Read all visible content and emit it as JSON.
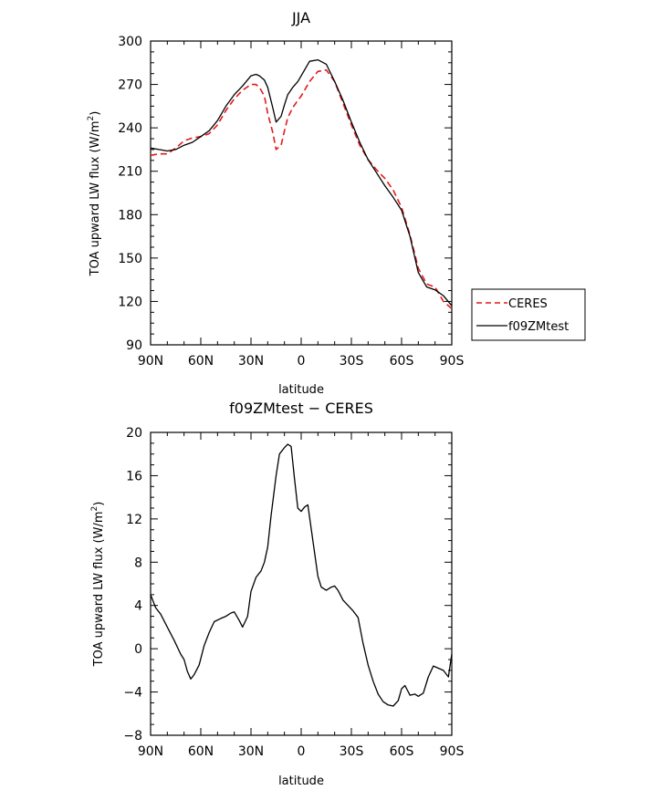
{
  "chart_data": [
    {
      "type": "line",
      "title": "JJA",
      "xlabel": "latitude",
      "ylabel_main": "TOA upward LW flux (W/m",
      "ylabel_sup": "2",
      "ylabel_close": ")",
      "xlim": [
        90,
        -90
      ],
      "ylim": [
        90,
        300
      ],
      "xticks": [
        90,
        60,
        30,
        0,
        -30,
        -60,
        -90
      ],
      "xtick_labels": [
        "90N",
        "60N",
        "30N",
        "0",
        "30S",
        "60S",
        "90S"
      ],
      "yticks": [
        90,
        120,
        150,
        180,
        210,
        240,
        270,
        300
      ],
      "ytick_labels": [
        "90",
        "120",
        "150",
        "180",
        "210",
        "240",
        "270",
        "300"
      ],
      "legend": {
        "placement": "right",
        "entries": [
          "CERES",
          "f09ZMtest"
        ]
      },
      "colors": {
        "CERES": "#e31a1c",
        "f09ZMtest": "#000000"
      },
      "series": [
        {
          "name": "CERES",
          "x": [
            90,
            85,
            80,
            75,
            70,
            65,
            60,
            55,
            50,
            45,
            40,
            35,
            30,
            27,
            25,
            22,
            20,
            17,
            15,
            12,
            10,
            8,
            5,
            2,
            0,
            -5,
            -10,
            -15,
            -20,
            -25,
            -30,
            -35,
            -40,
            -45,
            -50,
            -55,
            -60,
            -65,
            -70,
            -75,
            -80,
            -85,
            -90
          ],
          "y": [
            221,
            222,
            222,
            226,
            231,
            233,
            234,
            236,
            242,
            252,
            260,
            266,
            270,
            270,
            268,
            262,
            250,
            237,
            225,
            228,
            238,
            247,
            254,
            259,
            262,
            272,
            279,
            280,
            272,
            257,
            242,
            228,
            218,
            211,
            205,
            197,
            185,
            166,
            143,
            132,
            130,
            120,
            115
          ]
        },
        {
          "name": "f09ZMtest",
          "x": [
            90,
            85,
            80,
            75,
            70,
            65,
            60,
            55,
            50,
            45,
            40,
            35,
            30,
            27,
            25,
            22,
            20,
            17,
            15,
            12,
            10,
            8,
            5,
            2,
            0,
            -5,
            -10,
            -15,
            -20,
            -25,
            -30,
            -35,
            -40,
            -45,
            -50,
            -55,
            -60,
            -65,
            -70,
            -75,
            -80,
            -85,
            -90
          ],
          "y": [
            226,
            225,
            224,
            225,
            228,
            230,
            234,
            238,
            245,
            255,
            263,
            269,
            276,
            277,
            276,
            273,
            268,
            254,
            244,
            248,
            256,
            263,
            268,
            272,
            276,
            286,
            287,
            284,
            272,
            259,
            244,
            230,
            218,
            209,
            200,
            192,
            183,
            165,
            140,
            130,
            128,
            124,
            117
          ]
        }
      ]
    },
    {
      "type": "line",
      "title": "f09ZMtest − CERES",
      "xlabel": "latitude",
      "ylabel_main": "TOA upward LW flux (W/m",
      "ylabel_sup": "2",
      "ylabel_close": ")",
      "xlim": [
        90,
        -90
      ],
      "ylim": [
        -8,
        20
      ],
      "xticks": [
        90,
        60,
        30,
        0,
        -30,
        -60,
        -90
      ],
      "xtick_labels": [
        "90N",
        "60N",
        "30N",
        "0",
        "30S",
        "60S",
        "90S"
      ],
      "yticks": [
        -8,
        -4,
        0,
        4,
        8,
        12,
        16,
        20
      ],
      "ytick_labels": [
        "−8",
        "−4",
        "0",
        "4",
        "8",
        "12",
        "16",
        "20"
      ],
      "colors": {
        "difference": "#000000"
      },
      "series": [
        {
          "x": [
            90,
            87,
            84,
            80,
            76,
            72,
            70,
            68,
            66,
            64,
            61,
            58,
            55,
            52,
            48,
            45,
            42,
            40,
            37,
            35,
            32,
            30,
            27,
            24,
            22,
            20,
            18,
            15,
            13,
            10,
            8,
            6,
            4,
            2,
            0,
            -2,
            -4,
            -7,
            -10,
            -12,
            -15,
            -18,
            -20,
            -22,
            -25,
            -28,
            -31,
            -34,
            -37,
            -40,
            -43,
            -46,
            -49,
            -52,
            -55,
            -58,
            -60,
            -62,
            -65,
            -68,
            -70,
            -73,
            -76,
            -79,
            -82,
            -85,
            -88,
            -90
          ],
          "y": [
            5,
            3.8,
            3.2,
            2,
            0.8,
            -0.5,
            -1,
            -2.1,
            -2.8,
            -2.4,
            -1.5,
            0.3,
            1.5,
            2.5,
            2.8,
            3,
            3.3,
            3.4,
            2.6,
            2,
            3,
            5.3,
            6.6,
            7.2,
            8,
            9.4,
            12.3,
            16,
            18,
            18.6,
            18.9,
            18.7,
            15.7,
            13,
            12.7,
            13.1,
            13.3,
            10,
            6.7,
            5.7,
            5.4,
            5.7,
            5.8,
            5.4,
            4.5,
            4,
            3.5,
            2.9,
            0.5,
            -1.5,
            -3,
            -4.2,
            -4.9,
            -5.2,
            -5.3,
            -4.8,
            -3.7,
            -3.4,
            -4.3,
            -4.2,
            -4.4,
            -4.1,
            -2.6,
            -1.6,
            -1.8,
            -2,
            -2.6,
            -0.5
          ]
        }
      ]
    }
  ]
}
